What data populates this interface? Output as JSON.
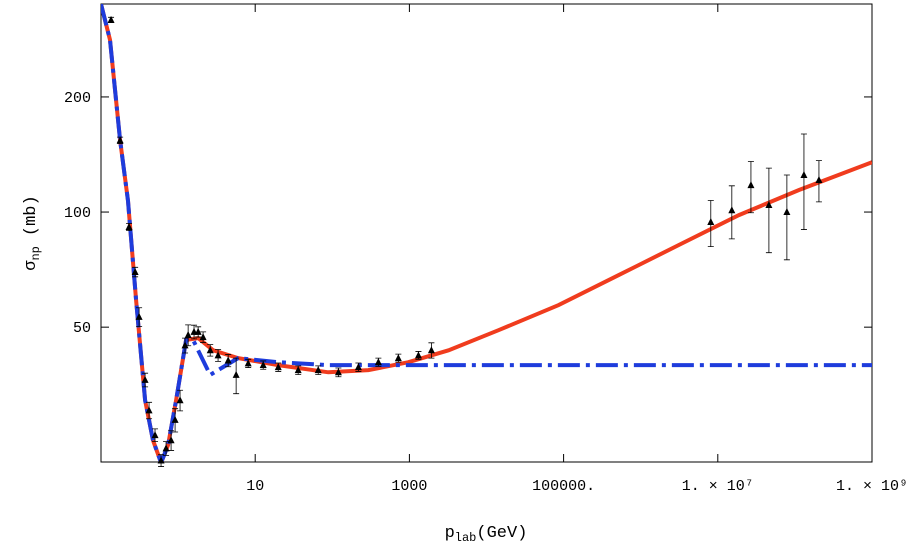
{
  "chart_data": {
    "type": "line",
    "x_label": {
      "main": "p",
      "subscript": "lab",
      "unit": "(GeV)"
    },
    "y_label": {
      "main": "σ",
      "subscript": "np",
      "unit": "(mb)"
    },
    "x_scale": "log",
    "y_scale": "log",
    "xlim": [
      0.1,
      1000000000
    ],
    "ylim": [
      22.2,
      350
    ],
    "xticks": [
      10,
      1000,
      {
        "value": 100000,
        "label": "100000."
      },
      {
        "value": 10000000,
        "label": "1. × 10⁷"
      },
      {
        "value": 1000000000,
        "label": "1. × 10⁹"
      }
    ],
    "yticks": [
      50,
      100,
      200
    ],
    "grid": false,
    "series": [
      {
        "kind": "line",
        "style": "solid",
        "color": "#f03c1e",
        "x": [
          0.1,
          0.131,
          0.177,
          0.224,
          0.285,
          0.373,
          0.473,
          0.601,
          0.741,
          0.942,
          1.27,
          1.82,
          2.85,
          6.0,
          19.9,
          88.8,
          294,
          971,
          3210,
          14300,
          86100,
          518000,
          3120000,
          18800000,
          113000000,
          1000000000
        ],
        "values": [
          350,
          282,
          154,
          107,
          58.8,
          32.2,
          25.3,
          22.1,
          24.6,
          32.2,
          46.3,
          46.8,
          43.5,
          41.5,
          39.8,
          38.1,
          38.6,
          40.5,
          43.5,
          49.1,
          57.1,
          68.4,
          82,
          98.2,
          114.2,
          135
        ]
      },
      {
        "kind": "line",
        "style": "dashed",
        "color": "#1e3cdc",
        "x": [
          0.1,
          0.131,
          0.177,
          0.224,
          0.285,
          0.373,
          0.473,
          0.601,
          0.741,
          0.942,
          1.27,
          1.566,
          2.11,
          2.61,
          3.3,
          6.0,
          19.9,
          88.8,
          1000000000
        ],
        "values": [
          350,
          282,
          154,
          107,
          58.8,
          32.2,
          25.3,
          22.1,
          24.6,
          32.2,
          46.3,
          46.3,
          40.9,
          37.5,
          38.6,
          41.5,
          40.5,
          39.8,
          39.8
        ]
      },
      {
        "kind": "errorbar",
        "color": "#000000",
        "x": [
          0.135,
          0.177,
          0.231,
          0.277,
          0.312,
          0.373,
          0.42,
          0.502,
          0.601,
          0.698,
          0.811,
          0.914,
          1.06,
          1.23,
          1.35,
          1.61,
          1.82,
          2.11,
          2.61,
          3.3,
          4.46,
          5.66,
          8.11,
          12.7,
          19.9,
          36.1,
          65.7,
          120,
          218,
          396,
          719,
          1310,
          1930,
          8110000,
          15200000,
          26900000,
          46000000,
          78700000,
          131000000,
          205000000
        ],
        "values": [
          318,
          154,
          91.4,
          69.7,
          53.2,
          36.4,
          30.3,
          26.1,
          22.4,
          24.1,
          25.3,
          28.6,
          32.2,
          44.8,
          47.7,
          48.6,
          48.6,
          47.1,
          43.5,
          42.2,
          40.9,
          37.5,
          40.2,
          39.8,
          39.3,
          38.6,
          38.6,
          38.1,
          39.3,
          40.5,
          41.5,
          42.2,
          43.5,
          94.2,
          101.1,
          117.6,
          104.3,
          100,
          125,
          121.3
        ],
        "errors": [
          5,
          3,
          2,
          2,
          3,
          1.5,
          1.5,
          1,
          0.8,
          1,
          1.5,
          2,
          2,
          2,
          3,
          2,
          1.5,
          1.5,
          1.5,
          1.5,
          1.5,
          4,
          1,
          1,
          1,
          1,
          1,
          1,
          1,
          1,
          1,
          1,
          2,
          13,
          16,
          18,
          26,
          25,
          35,
          15
        ]
      }
    ]
  }
}
